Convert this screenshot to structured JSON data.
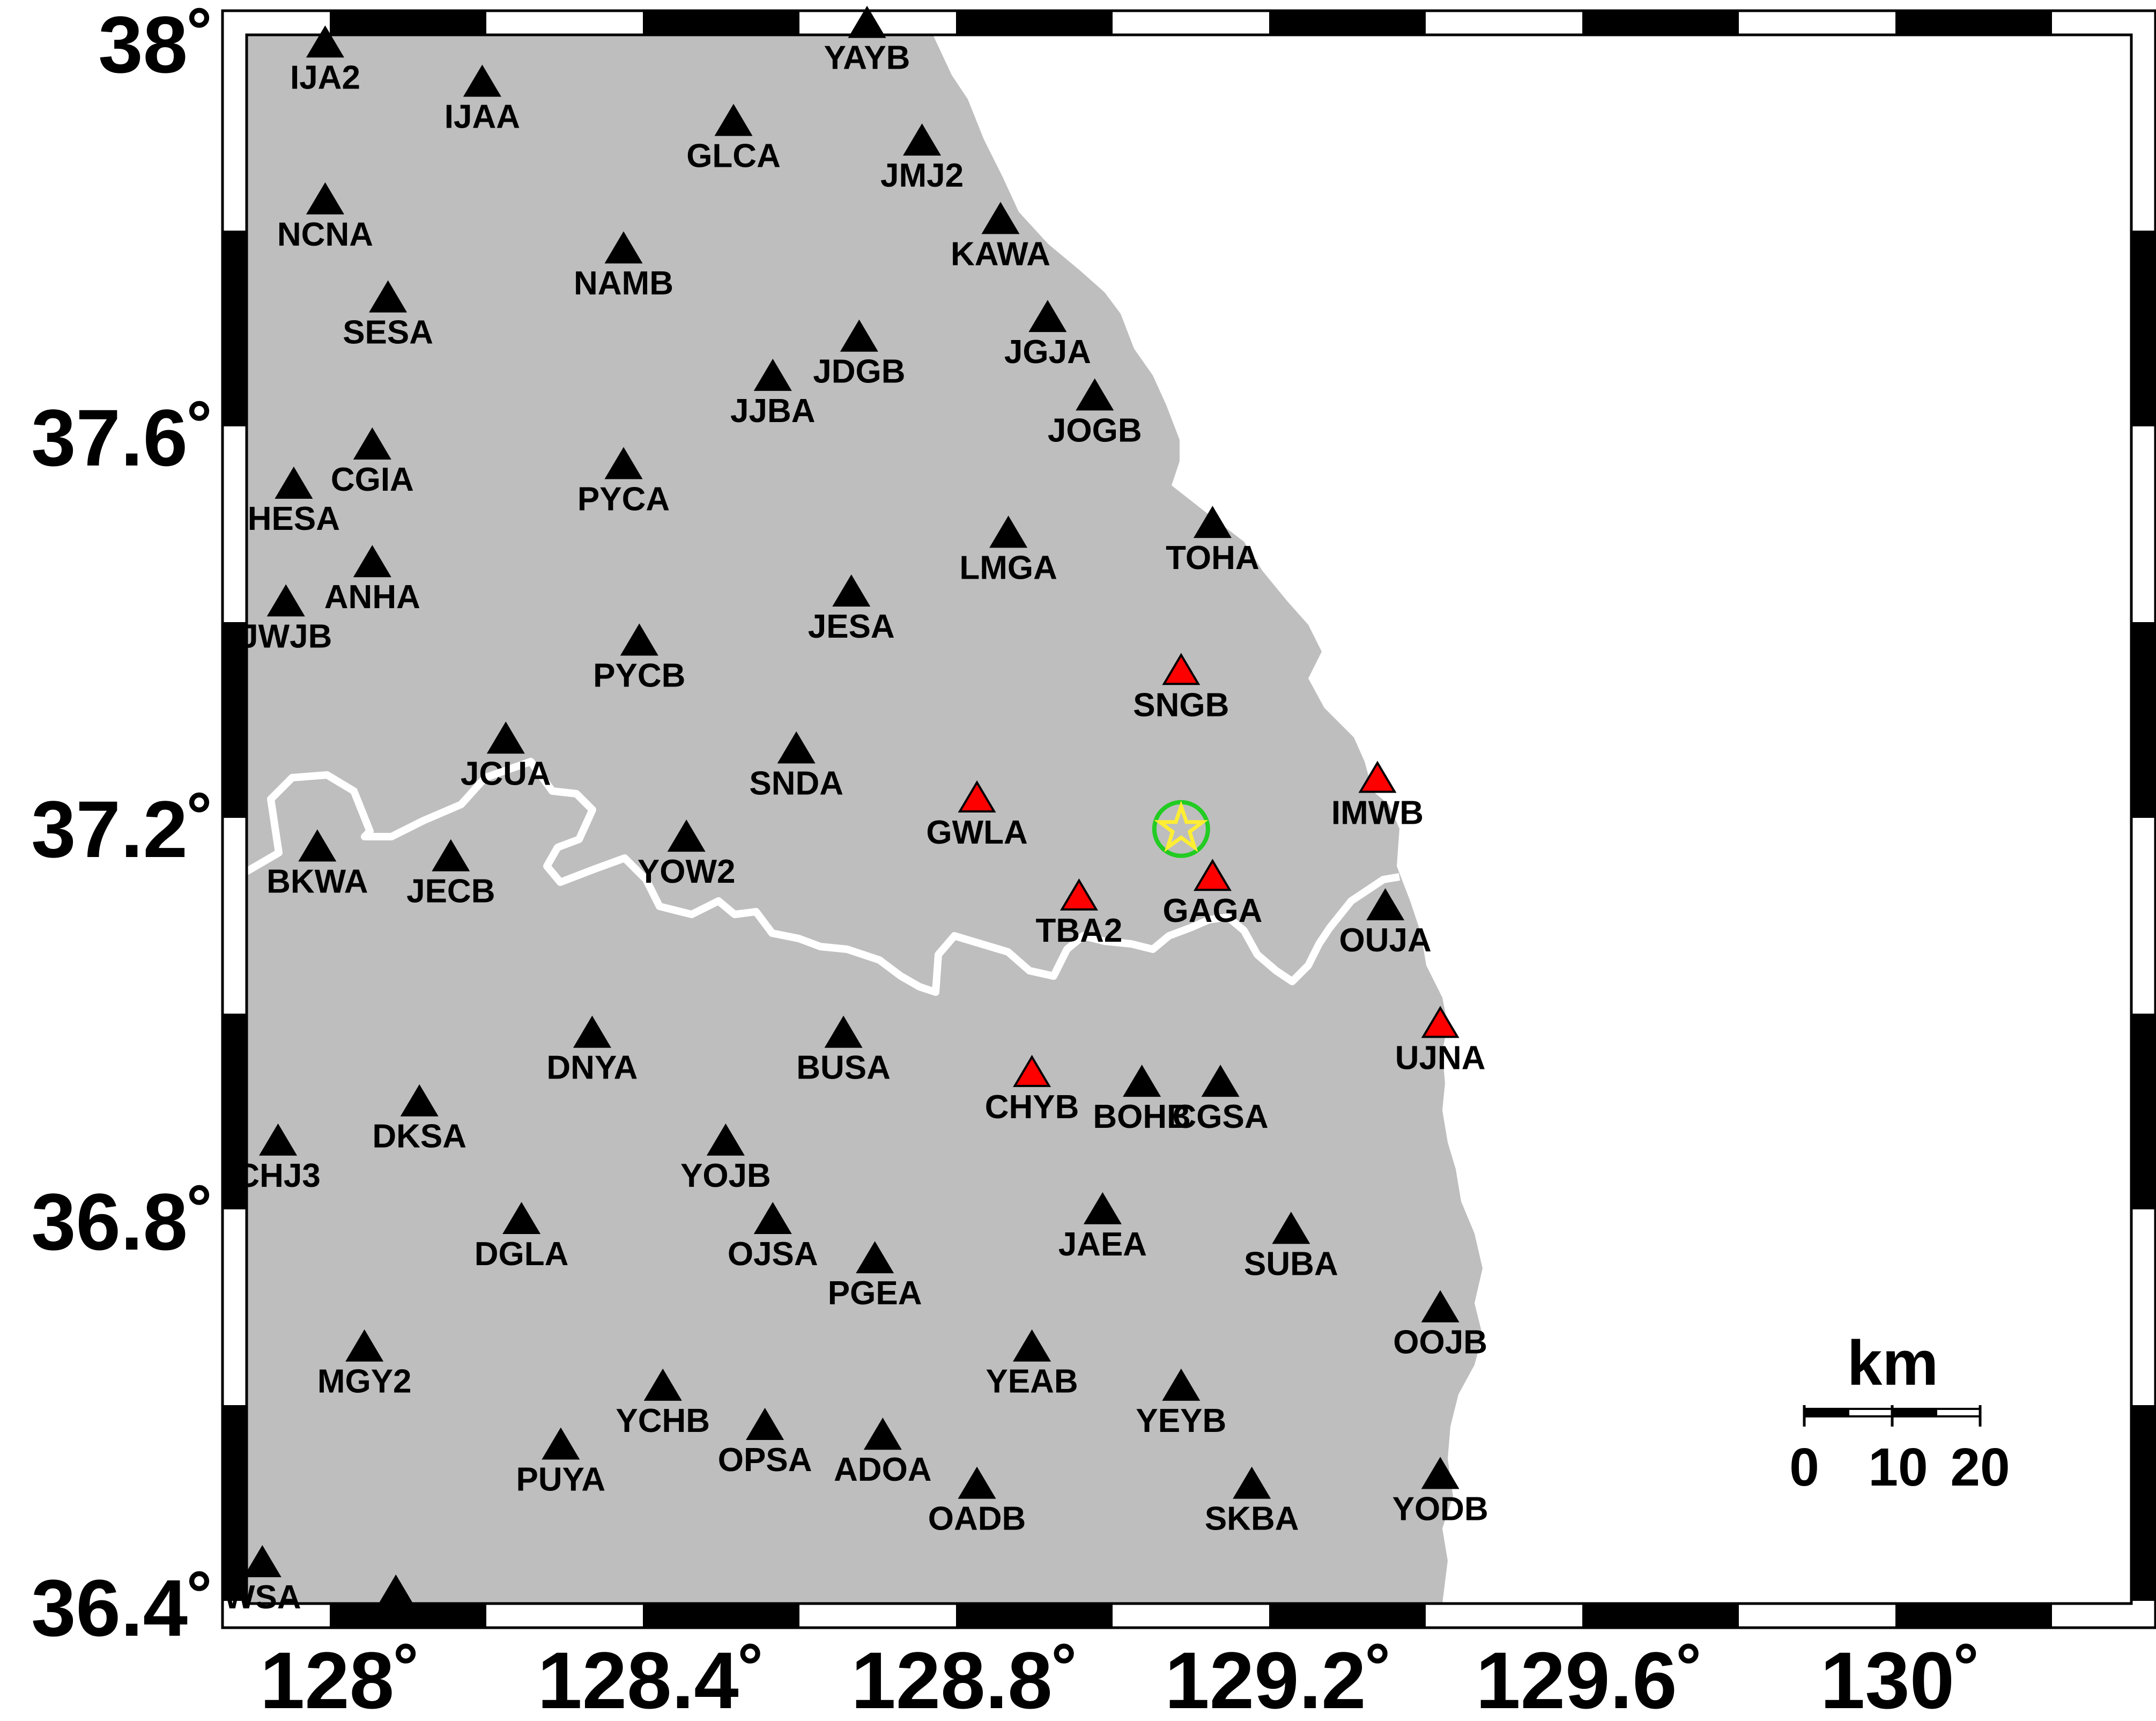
{
  "colors": {
    "land": "#bebebe",
    "sea": "#ffffff",
    "border": "#ffffff",
    "station": "#000000",
    "highlight_station": "#ff0000",
    "epicenter_circle": "#22cc22",
    "epicenter_star": "#ffee33"
  },
  "axes": {
    "lon_labels": [
      "128˚",
      "128.4˚",
      "128.8˚",
      "129.2˚",
      "129.6˚",
      "130˚"
    ],
    "lat_labels": [
      "38˚",
      "37.6˚",
      "37.2˚",
      "36.8˚",
      "36.4˚"
    ],
    "lon_range": [
      127.88,
      130.28
    ],
    "lat_range": [
      36.4,
      38.0
    ]
  },
  "scale_bar": {
    "title": "km",
    "labels": [
      "0",
      "10",
      "20"
    ]
  },
  "epicenter": {
    "lon": 129.07,
    "lat": 37.19,
    "icon": "star-icon"
  },
  "stations": [
    {
      "code": "YAYB",
      "lon": 128.67,
      "lat": 38.01,
      "highlight": false
    },
    {
      "code": "IJA2",
      "lon": 127.98,
      "lat": 37.99,
      "highlight": false
    },
    {
      "code": "IJAA",
      "lon": 128.18,
      "lat": 37.95,
      "highlight": false
    },
    {
      "code": "GLCA",
      "lon": 128.5,
      "lat": 37.91,
      "highlight": false
    },
    {
      "code": "JMJ2",
      "lon": 128.74,
      "lat": 37.89,
      "highlight": false
    },
    {
      "code": "NCNA",
      "lon": 127.98,
      "lat": 37.83,
      "highlight": false
    },
    {
      "code": "KAWA",
      "lon": 128.84,
      "lat": 37.81,
      "highlight": false
    },
    {
      "code": "NAMB",
      "lon": 128.36,
      "lat": 37.78,
      "highlight": false
    },
    {
      "code": "SESA",
      "lon": 128.06,
      "lat": 37.73,
      "highlight": false
    },
    {
      "code": "JGJA",
      "lon": 128.9,
      "lat": 37.71,
      "highlight": false
    },
    {
      "code": "JDGB",
      "lon": 128.66,
      "lat": 37.69,
      "highlight": false
    },
    {
      "code": "JJBA",
      "lon": 128.55,
      "lat": 37.65,
      "highlight": false
    },
    {
      "code": "JOGB",
      "lon": 128.96,
      "lat": 37.63,
      "highlight": false
    },
    {
      "code": "CGIA",
      "lon": 128.04,
      "lat": 37.58,
      "highlight": false
    },
    {
      "code": "PYCA",
      "lon": 128.36,
      "lat": 37.56,
      "highlight": false
    },
    {
      "code": "HESA",
      "lon": 127.94,
      "lat": 37.54,
      "highlight": false
    },
    {
      "code": "TOHA",
      "lon": 129.11,
      "lat": 37.5,
      "highlight": false
    },
    {
      "code": "LMGA",
      "lon": 128.85,
      "lat": 37.49,
      "highlight": false
    },
    {
      "code": "ANHA",
      "lon": 128.04,
      "lat": 37.46,
      "highlight": false
    },
    {
      "code": "JESA",
      "lon": 128.65,
      "lat": 37.43,
      "highlight": false
    },
    {
      "code": "JWJB",
      "lon": 127.93,
      "lat": 37.42,
      "highlight": false
    },
    {
      "code": "PYCB",
      "lon": 128.38,
      "lat": 37.38,
      "highlight": false
    },
    {
      "code": "SNGB",
      "lon": 129.07,
      "lat": 37.35,
      "highlight": true
    },
    {
      "code": "JCUA",
      "lon": 128.21,
      "lat": 37.28,
      "highlight": false
    },
    {
      "code": "SNDA",
      "lon": 128.58,
      "lat": 37.27,
      "highlight": false
    },
    {
      "code": "IMWB",
      "lon": 129.32,
      "lat": 37.24,
      "highlight": true
    },
    {
      "code": "GWLA",
      "lon": 128.81,
      "lat": 37.22,
      "highlight": true
    },
    {
      "code": "YOW2",
      "lon": 128.44,
      "lat": 37.18,
      "highlight": false
    },
    {
      "code": "BKWA",
      "lon": 127.97,
      "lat": 37.17,
      "highlight": false
    },
    {
      "code": "JECB",
      "lon": 128.14,
      "lat": 37.16,
      "highlight": false
    },
    {
      "code": "GAGA",
      "lon": 129.11,
      "lat": 37.14,
      "highlight": true
    },
    {
      "code": "TBA2",
      "lon": 128.94,
      "lat": 37.12,
      "highlight": true
    },
    {
      "code": "OUJA",
      "lon": 129.33,
      "lat": 37.11,
      "highlight": false
    },
    {
      "code": "UJNA",
      "lon": 129.4,
      "lat": 36.99,
      "highlight": true
    },
    {
      "code": "DNYA",
      "lon": 128.32,
      "lat": 36.98,
      "highlight": false
    },
    {
      "code": "BUSA",
      "lon": 128.64,
      "lat": 36.98,
      "highlight": false
    },
    {
      "code": "CHYB",
      "lon": 128.88,
      "lat": 36.94,
      "highlight": true
    },
    {
      "code": "BOHB",
      "lon": 129.02,
      "lat": 36.93,
      "highlight": false
    },
    {
      "code": "CGSA",
      "lon": 129.12,
      "lat": 36.93,
      "highlight": false
    },
    {
      "code": "DKSA",
      "lon": 128.1,
      "lat": 36.91,
      "highlight": false
    },
    {
      "code": "CHJ3",
      "lon": 127.92,
      "lat": 36.87,
      "highlight": false
    },
    {
      "code": "YOJB",
      "lon": 128.49,
      "lat": 36.87,
      "highlight": false
    },
    {
      "code": "JAEA",
      "lon": 128.97,
      "lat": 36.8,
      "highlight": false
    },
    {
      "code": "DGLA",
      "lon": 128.23,
      "lat": 36.79,
      "highlight": false
    },
    {
      "code": "OJSA",
      "lon": 128.55,
      "lat": 36.79,
      "highlight": false
    },
    {
      "code": "SUBA",
      "lon": 129.21,
      "lat": 36.78,
      "highlight": false
    },
    {
      "code": "PGEA",
      "lon": 128.68,
      "lat": 36.75,
      "highlight": false
    },
    {
      "code": "OOJB",
      "lon": 129.4,
      "lat": 36.7,
      "highlight": false
    },
    {
      "code": "MGY2",
      "lon": 128.03,
      "lat": 36.66,
      "highlight": false
    },
    {
      "code": "YEAB",
      "lon": 128.88,
      "lat": 36.66,
      "highlight": false
    },
    {
      "code": "YCHB",
      "lon": 128.41,
      "lat": 36.62,
      "highlight": false
    },
    {
      "code": "YEYB",
      "lon": 129.07,
      "lat": 36.62,
      "highlight": false
    },
    {
      "code": "OPSA",
      "lon": 128.54,
      "lat": 36.58,
      "highlight": false
    },
    {
      "code": "ADOA",
      "lon": 128.69,
      "lat": 36.57,
      "highlight": false
    },
    {
      "code": "PUYA",
      "lon": 128.28,
      "lat": 36.56,
      "highlight": false
    },
    {
      "code": "YODB",
      "lon": 129.4,
      "lat": 36.53,
      "highlight": false
    },
    {
      "code": "OADB",
      "lon": 128.81,
      "lat": 36.52,
      "highlight": false
    },
    {
      "code": "SKBA",
      "lon": 129.16,
      "lat": 36.52,
      "highlight": false
    },
    {
      "code": "WSA",
      "lon": 127.9,
      "lat": 36.44,
      "highlight": false
    },
    {
      "code": "",
      "lon": 128.07,
      "lat": 36.41,
      "highlight": false
    }
  ]
}
